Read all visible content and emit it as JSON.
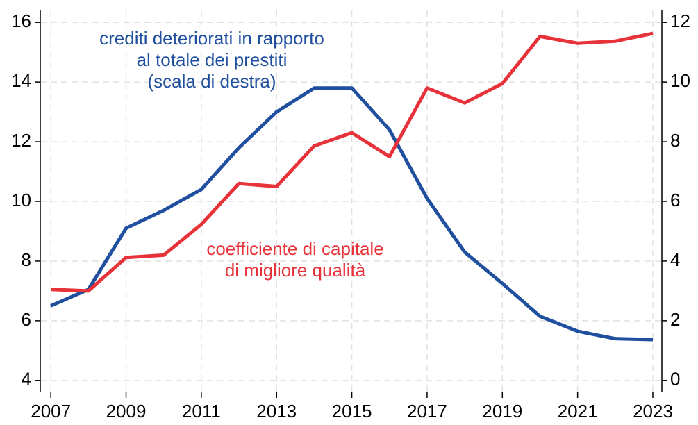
{
  "chart_data": {
    "type": "line",
    "x": [
      2007,
      2008,
      2009,
      2010,
      2011,
      2012,
      2013,
      2014,
      2015,
      2016,
      2017,
      2018,
      2019,
      2020,
      2021,
      2022,
      2023
    ],
    "series": [
      {
        "name": "crediti deteriorati in rapporto al totale dei prestiti (scala di destra)",
        "color": "#1f4f9e",
        "axis": "y2",
        "values": [
          2.5,
          3.05,
          5.1,
          5.7,
          6.4,
          7.8,
          9.0,
          9.8,
          9.8,
          8.4,
          6.1,
          4.3,
          3.25,
          2.15,
          1.65,
          1.4,
          1.37
        ]
      },
      {
        "name": "coefficiente di capitale di migliore qualità",
        "color": "#e8323a",
        "values": [
          7.05,
          7.0,
          8.12,
          8.2,
          9.23,
          10.6,
          10.5,
          11.86,
          12.3,
          11.5,
          13.8,
          13.3,
          13.95,
          15.53,
          15.3,
          15.37,
          15.63
        ]
      }
    ],
    "annotations": [
      {
        "lines": [
          "crediti deteriorati in rapporto",
          "al totale dei prestiti",
          "(scala di destra)"
        ],
        "color": "#1f4f9e"
      },
      {
        "lines": [
          "coefficiente di capitale",
          "di migliore qualità"
        ],
        "color": "#e8323a"
      }
    ],
    "xlim": [
      2006.72,
      2023.24
    ],
    "xticks": [
      2007,
      2009,
      2011,
      2013,
      2015,
      2017,
      2019,
      2021,
      2023
    ],
    "ylim": [
      3.6,
      16.4
    ],
    "yticks": [
      4,
      6,
      8,
      10,
      12,
      14,
      16
    ],
    "y2lim": [
      -0.4,
      12.4
    ],
    "y2ticks": [
      0,
      2,
      4,
      6,
      8,
      10,
      12
    ],
    "grid": true
  }
}
